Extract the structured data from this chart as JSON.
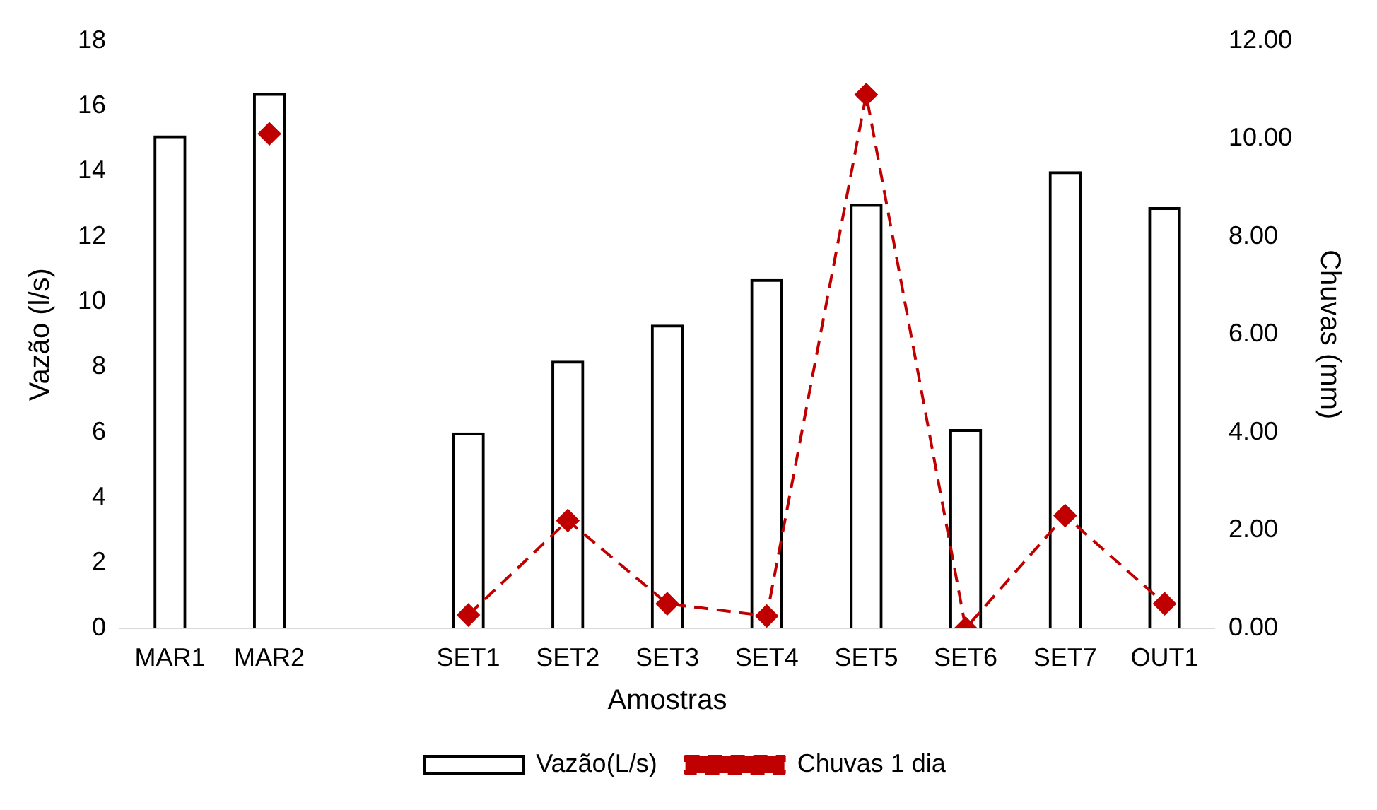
{
  "chart_data": {
    "type": "bar",
    "xlabel": "Amostras",
    "ylabel": "Vazão (l/s)",
    "y2label": "Chuvas (mm)",
    "categories": [
      "MAR1",
      "MAR2",
      null,
      "SET1",
      "SET2",
      "SET3",
      "SET4",
      "SET5",
      "SET6",
      "SET7",
      "OUT1"
    ],
    "series": [
      {
        "name": "Vazão(L/s)",
        "color": "#000000",
        "values": [
          15.1,
          16.4,
          null,
          6.0,
          8.2,
          9.3,
          10.7,
          13.0,
          6.1,
          14.0,
          12.9
        ]
      },
      {
        "name": "Chuvas 1 dia",
        "type": "line",
        "axis": "y2",
        "color": "#c00000",
        "line_style": "dashed",
        "marker": "diamond",
        "values": [
          null,
          10.1,
          null,
          0.27,
          2.2,
          0.5,
          0.25,
          10.9,
          0,
          2.3,
          0.5
        ]
      }
    ],
    "ylim": [
      0,
      18
    ],
    "yticks": [
      0,
      2,
      4,
      6,
      8,
      10,
      12,
      14,
      16,
      18
    ],
    "y2lim": [
      0,
      12
    ],
    "y2ticks": [
      {
        "value": 0,
        "label": "0.00"
      },
      {
        "value": 2,
        "label": "2.00"
      },
      {
        "value": 4,
        "label": "4.00"
      },
      {
        "value": 6,
        "label": "6.00"
      },
      {
        "value": 8,
        "label": "8.00"
      },
      {
        "value": 10,
        "label": "10.00"
      },
      {
        "value": 12,
        "label": "12.00"
      }
    ],
    "grid": false,
    "legend": "bottom"
  }
}
